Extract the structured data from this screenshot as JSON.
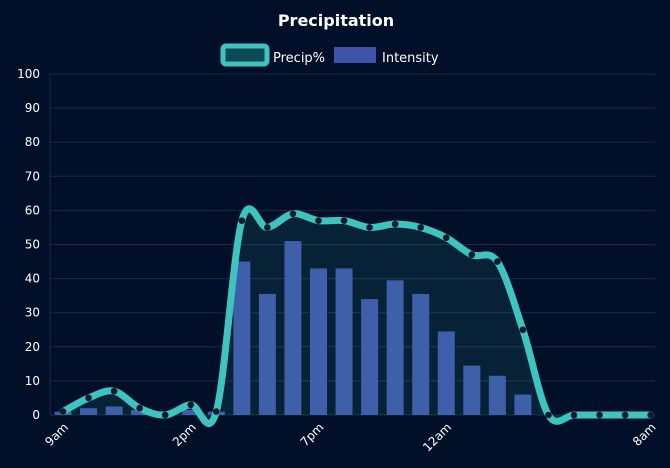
{
  "chart_data": {
    "type": "bar+line",
    "title": "Precipitation",
    "legend": {
      "placement": "top-center"
    },
    "y_axis": {
      "min": 0,
      "max": 100,
      "ticks": [
        0,
        10,
        20,
        30,
        40,
        50,
        60,
        70,
        80,
        90,
        100
      ]
    },
    "x_labels": [
      {
        "index": 0,
        "label": "9am"
      },
      {
        "index": 5,
        "label": "2pm"
      },
      {
        "index": 10,
        "label": "7pm"
      },
      {
        "index": 15,
        "label": "12am"
      },
      {
        "index": 23,
        "label": "8am"
      }
    ],
    "series": [
      {
        "name": "Precip%",
        "type": "line",
        "values": [
          1,
          5,
          7,
          2,
          0,
          3,
          1,
          57,
          55,
          59,
          57,
          57,
          55,
          56,
          55,
          52,
          47,
          45,
          25,
          0,
          0,
          0,
          0,
          0
        ]
      },
      {
        "name": "Intensity",
        "type": "bar",
        "values": [
          1,
          2,
          2.5,
          1.5,
          0,
          1.5,
          1,
          45,
          35.5,
          51,
          43,
          43,
          34,
          39.5,
          35.5,
          24.5,
          14.5,
          11.5,
          6,
          0,
          0,
          0,
          0,
          0
        ]
      }
    ],
    "colors": {
      "line": "#3ec4bf",
      "bar": "#3f54a8",
      "grid": "#1d2a44",
      "text": "#ffffff"
    }
  }
}
